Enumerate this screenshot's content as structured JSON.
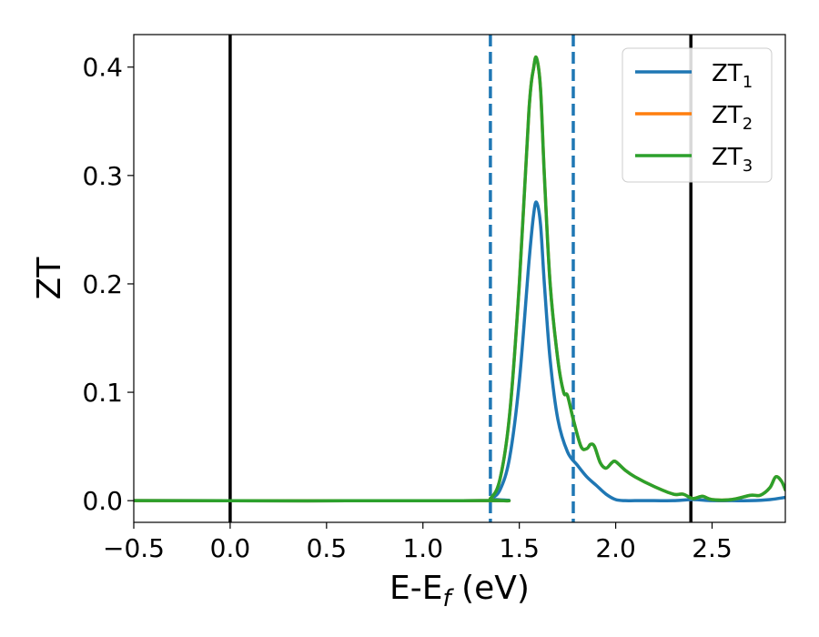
{
  "chart_data": {
    "type": "line",
    "xlabel": "E-E",
    "xlabel_sub": "f",
    "xlabel_unit": " (eV)",
    "ylabel": "ZT",
    "xlim": [
      -0.5,
      2.88
    ],
    "ylim": [
      -0.02,
      0.43
    ],
    "xticks": [
      -0.5,
      0.0,
      0.5,
      1.0,
      1.5,
      2.0,
      2.5
    ],
    "xtick_labels": [
      "−0.5",
      "0.0",
      "0.5",
      "1.0",
      "1.5",
      "2.0",
      "2.5"
    ],
    "yticks": [
      0.0,
      0.1,
      0.2,
      0.3,
      0.4
    ],
    "ytick_labels": [
      "0.0",
      "0.1",
      "0.2",
      "0.3",
      "0.4"
    ],
    "grid": false,
    "legend_position": "top-right",
    "vlines_solid": [
      0.0,
      2.39
    ],
    "vlines_dashed": [
      1.35,
      1.78
    ],
    "vline_colors": {
      "solid": "#000000",
      "dashed": "#1f77b4"
    },
    "series": [
      {
        "name": "ZT",
        "name_sub": "1",
        "color": "#1f77b4",
        "x": [
          -0.5,
          1.3,
          1.35,
          1.4,
          1.45,
          1.5,
          1.55,
          1.575,
          1.59,
          1.61,
          1.63,
          1.66,
          1.7,
          1.75,
          1.8,
          1.85,
          1.9,
          1.95,
          2.0,
          2.05,
          2.1,
          2.2,
          2.3,
          2.4,
          2.5,
          2.6,
          2.7,
          2.8,
          2.88
        ],
        "values": [
          0.0,
          0.0,
          0.002,
          0.01,
          0.04,
          0.11,
          0.22,
          0.265,
          0.275,
          0.255,
          0.2,
          0.13,
          0.075,
          0.045,
          0.033,
          0.022,
          0.014,
          0.006,
          0.001,
          0.0,
          0.0,
          0.0,
          0.0,
          0.001,
          0.0,
          0.0,
          0.0,
          0.001,
          0.003
        ]
      },
      {
        "name": "ZT",
        "name_sub": "2",
        "color": "#ff7f0e",
        "x": [
          -0.5,
          1.3,
          1.35,
          1.4,
          1.45,
          1.5,
          1.55,
          1.575,
          1.59,
          1.61,
          1.63,
          1.66,
          1.7,
          1.73,
          1.75,
          1.78,
          1.82,
          1.85,
          1.87,
          1.89,
          1.92,
          1.95,
          1.98,
          2.0,
          2.05,
          2.1,
          2.2,
          2.3,
          2.35,
          2.4,
          2.45,
          2.5,
          2.6,
          2.7,
          2.75,
          2.8,
          2.83,
          2.86,
          2.88
        ],
        "values": [
          0.0,
          0.0,
          0.002,
          0.02,
          0.08,
          0.2,
          0.36,
          0.4,
          0.408,
          0.38,
          0.3,
          0.2,
          0.13,
          0.1,
          0.097,
          0.075,
          0.05,
          0.048,
          0.052,
          0.05,
          0.035,
          0.03,
          0.035,
          0.036,
          0.028,
          0.022,
          0.013,
          0.006,
          0.006,
          0.002,
          0.004,
          0.001,
          0.001,
          0.005,
          0.005,
          0.012,
          0.022,
          0.018,
          0.01
        ]
      },
      {
        "name": "ZT",
        "name_sub": "3",
        "color": "#2ca02c",
        "x": [
          -0.5,
          1.3,
          1.35,
          1.4,
          1.45,
          1.5,
          1.55,
          1.575,
          1.59,
          1.61,
          1.63,
          1.66,
          1.7,
          1.73,
          1.75,
          1.78,
          1.82,
          1.85,
          1.87,
          1.89,
          1.92,
          1.95,
          1.98,
          2.0,
          2.05,
          2.1,
          2.2,
          2.3,
          2.35,
          2.4,
          2.45,
          2.5,
          2.6,
          2.7,
          2.75,
          2.8,
          2.83,
          2.86,
          2.88
        ],
        "values": [
          0.0,
          0.0,
          0.002,
          0.02,
          0.08,
          0.2,
          0.36,
          0.4,
          0.408,
          0.38,
          0.3,
          0.2,
          0.13,
          0.1,
          0.097,
          0.075,
          0.05,
          0.048,
          0.052,
          0.05,
          0.035,
          0.03,
          0.035,
          0.036,
          0.028,
          0.022,
          0.013,
          0.006,
          0.006,
          0.002,
          0.004,
          0.001,
          0.001,
          0.005,
          0.005,
          0.012,
          0.022,
          0.018,
          0.01
        ]
      }
    ]
  }
}
